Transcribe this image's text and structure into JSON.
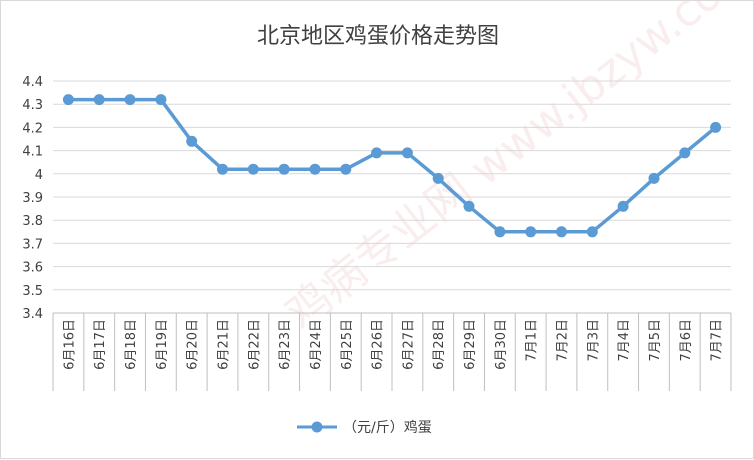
{
  "chart_data": {
    "type": "line",
    "title": "北京地区鸡蛋价格走势图",
    "categories": [
      "6月16日",
      "6月17日",
      "6月18日",
      "6月19日",
      "6月20日",
      "6月21日",
      "6月22日",
      "6月23日",
      "6月24日",
      "6月25日",
      "6月26日",
      "6月27日",
      "6月28日",
      "6月29日",
      "6月30日",
      "7月1日",
      "7月2日",
      "7月3日",
      "7月4日",
      "7月5日",
      "7月6日",
      "7月7日"
    ],
    "series": [
      {
        "name": "（元/斤）鸡蛋",
        "values": [
          4.32,
          4.32,
          4.32,
          4.32,
          4.14,
          4.02,
          4.02,
          4.02,
          4.02,
          4.02,
          4.09,
          4.09,
          3.98,
          3.86,
          3.75,
          3.75,
          3.75,
          3.75,
          3.86,
          3.98,
          4.09,
          4.2
        ]
      }
    ],
    "y_ticks": [
      "3.4",
      "3.5",
      "3.6",
      "3.7",
      "3.8",
      "3.9",
      "4",
      "4.1",
      "4.2",
      "4.3",
      "4.4"
    ],
    "ylim": [
      3.4,
      4.4
    ],
    "grid": true,
    "legend_position": "bottom",
    "series_color": "#5b9bd5",
    "watermark_text": "鸡病专业网 www.jbzyw.com"
  }
}
